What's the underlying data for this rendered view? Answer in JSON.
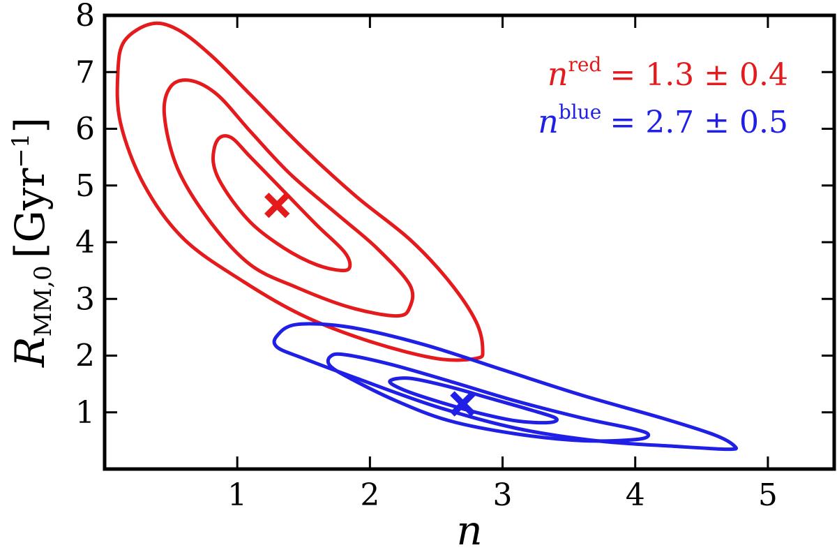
{
  "chart_data": {
    "type": "contour",
    "xlabel": "n",
    "ylabel": {
      "main": "R",
      "sub": "MM,0",
      "unit": "[Gyr",
      "unit_sup": "−1",
      "unit_close": "]"
    },
    "xlim": [
      0,
      5.5
    ],
    "ylim": [
      0,
      8
    ],
    "xticks": [
      1,
      2,
      3,
      4,
      5
    ],
    "yticks": [
      1,
      2,
      3,
      4,
      5,
      6,
      7,
      8
    ],
    "grid": false,
    "legend_position": "top-right",
    "legend": [
      {
        "base": "n",
        "sup": "red",
        "text": "= 1.3 ± 0.4",
        "color": "#e41a1c"
      },
      {
        "base": "n",
        "sup": "blue",
        "text": "= 2.7 ± 0.5",
        "color": "#1f1fe6"
      }
    ],
    "series": [
      {
        "name": "red",
        "color": "#e41a1c",
        "best_fit": [
          1.3,
          4.65
        ],
        "contours": [
          [
            [
              0.85,
              5.8
            ],
            [
              0.95,
              5.85
            ],
            [
              1.1,
              5.5
            ],
            [
              1.35,
              4.9
            ],
            [
              1.6,
              4.3
            ],
            [
              1.8,
              3.85
            ],
            [
              1.85,
              3.6
            ],
            [
              1.8,
              3.5
            ],
            [
              1.6,
              3.6
            ],
            [
              1.35,
              3.9
            ],
            [
              1.1,
              4.35
            ],
            [
              0.9,
              4.95
            ],
            [
              0.82,
              5.4
            ]
          ],
          [
            [
              0.5,
              6.75
            ],
            [
              0.65,
              6.85
            ],
            [
              0.85,
              6.6
            ],
            [
              1.1,
              5.95
            ],
            [
              1.4,
              5.2
            ],
            [
              1.75,
              4.5
            ],
            [
              2.05,
              3.9
            ],
            [
              2.3,
              3.25
            ],
            [
              2.3,
              2.85
            ],
            [
              2.2,
              2.7
            ],
            [
              1.85,
              2.85
            ],
            [
              1.45,
              3.2
            ],
            [
              1.1,
              3.6
            ],
            [
              0.8,
              4.35
            ],
            [
              0.55,
              5.3
            ],
            [
              0.45,
              6.25
            ]
          ],
          [
            [
              0.15,
              7.55
            ],
            [
              0.35,
              7.85
            ],
            [
              0.55,
              7.75
            ],
            [
              0.8,
              7.3
            ],
            [
              1.1,
              6.6
            ],
            [
              1.5,
              5.65
            ],
            [
              1.9,
              4.8
            ],
            [
              2.3,
              4.05
            ],
            [
              2.6,
              3.3
            ],
            [
              2.8,
              2.6
            ],
            [
              2.85,
              2.1
            ],
            [
              2.8,
              1.95
            ],
            [
              2.5,
              1.95
            ],
            [
              2.0,
              2.25
            ],
            [
              1.5,
              2.7
            ],
            [
              1.05,
              3.3
            ],
            [
              0.6,
              4.05
            ],
            [
              0.3,
              5.0
            ],
            [
              0.12,
              6.1
            ],
            [
              0.1,
              7.0
            ]
          ]
        ]
      },
      {
        "name": "blue",
        "color": "#1f1fe6",
        "best_fit": [
          2.7,
          1.15
        ],
        "contours": [
          [
            [
              2.15,
              1.55
            ],
            [
              2.3,
              1.6
            ],
            [
              2.6,
              1.45
            ],
            [
              2.9,
              1.25
            ],
            [
              3.2,
              1.05
            ],
            [
              3.4,
              0.9
            ],
            [
              3.35,
              0.82
            ],
            [
              3.1,
              0.85
            ],
            [
              2.8,
              1.0
            ],
            [
              2.5,
              1.2
            ],
            [
              2.25,
              1.4
            ]
          ],
          [
            [
              1.7,
              1.98
            ],
            [
              1.8,
              2.02
            ],
            [
              2.15,
              1.85
            ],
            [
              2.6,
              1.55
            ],
            [
              3.1,
              1.2
            ],
            [
              3.6,
              0.9
            ],
            [
              4.0,
              0.7
            ],
            [
              4.1,
              0.6
            ],
            [
              4.0,
              0.52
            ],
            [
              3.6,
              0.5
            ],
            [
              3.1,
              0.62
            ],
            [
              2.6,
              0.85
            ],
            [
              2.2,
              1.2
            ],
            [
              1.85,
              1.6
            ],
            [
              1.7,
              1.82
            ]
          ],
          [
            [
              1.3,
              2.35
            ],
            [
              1.45,
              2.55
            ],
            [
              1.85,
              2.5
            ],
            [
              2.4,
              2.2
            ],
            [
              3.0,
              1.75
            ],
            [
              3.6,
              1.3
            ],
            [
              4.2,
              0.9
            ],
            [
              4.6,
              0.6
            ],
            [
              4.75,
              0.4
            ],
            [
              4.7,
              0.35
            ],
            [
              4.3,
              0.4
            ],
            [
              3.7,
              0.5
            ],
            [
              3.1,
              0.72
            ],
            [
              2.5,
              1.1
            ],
            [
              1.9,
              1.6
            ],
            [
              1.5,
              1.95
            ],
            [
              1.3,
              2.15
            ]
          ]
        ]
      }
    ]
  }
}
